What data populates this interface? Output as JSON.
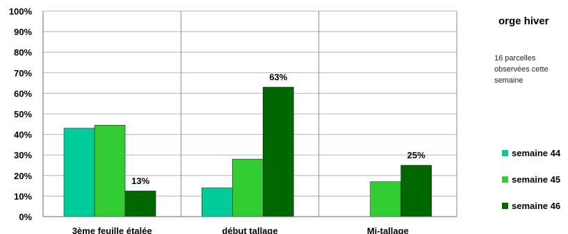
{
  "chart_data": {
    "type": "bar",
    "categories": [
      "3ème feuille étalée",
      "début tallage",
      "Mi-tallage"
    ],
    "series": [
      {
        "name": "semaine 44",
        "color": "#00cc99",
        "values": [
          43,
          14,
          null
        ]
      },
      {
        "name": "semaine 45",
        "color": "#33cc33",
        "values": [
          44.5,
          28,
          17
        ]
      },
      {
        "name": "semaine 46",
        "color": "#006600",
        "values": [
          12.5,
          63,
          25
        ]
      }
    ],
    "data_labels": [
      {
        "series": 2,
        "category": 0,
        "text": "13%"
      },
      {
        "series": 2,
        "category": 1,
        "text": "63%"
      },
      {
        "series": 2,
        "category": 2,
        "text": "25%"
      }
    ],
    "ylim": [
      0,
      100
    ],
    "yticks": [
      "0%",
      "10%",
      "20%",
      "30%",
      "40%",
      "50%",
      "60%",
      "70%",
      "80%",
      "90%",
      "100%"
    ],
    "grid": true,
    "legend_position": "right"
  },
  "side": {
    "title": "orge hiver",
    "note": "16 parcelles observées cette semaine"
  }
}
